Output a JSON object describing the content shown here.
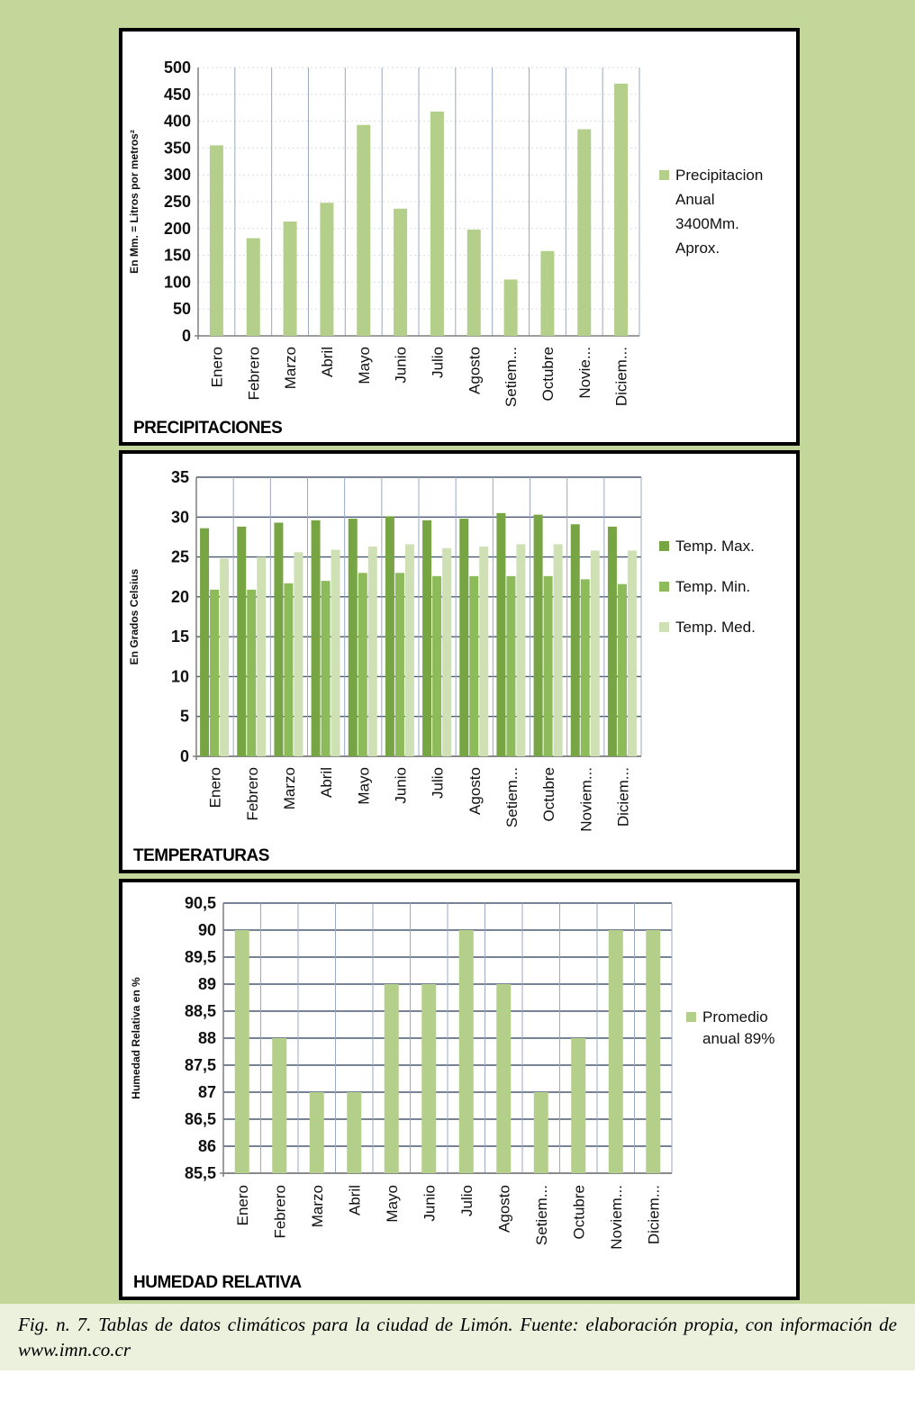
{
  "caption": "Fig. n. 7. Tablas de datos climáticos para la ciudad de Limón. Fuente: elaboración propia, con información de www.imn.co.cr",
  "colors": {
    "figure_background": "#c4d79b",
    "caption_background": "#ebf1dd",
    "bar_light": "#b4cf8a",
    "bar_dark": "#77a543",
    "bar_mid": "#8dbb5a",
    "bar_pale": "#cfe0b4",
    "gridline": "#4a5a70"
  },
  "chart_data": [
    {
      "type": "bar",
      "panel_title": "PRECIPITACIONES",
      "ylabel": "En Mm. = Litros por metros²",
      "categories": [
        "Enero",
        "Febrero",
        "Marzo",
        "Abril",
        "Mayo",
        "Junio",
        "Julio",
        "Agosto",
        "Setiem...",
        "Octubre",
        "Novie...",
        "Diciem..."
      ],
      "ylim": [
        0,
        500
      ],
      "yticks": [
        "0",
        "50",
        "100",
        "150",
        "200",
        "250",
        "300",
        "350",
        "400",
        "450",
        "500"
      ],
      "grid": "vertical",
      "legend_position": "right",
      "series": [
        {
          "name": "Precipitacion Anual 3400Mm. Aprox.",
          "legend_lines": [
            "Precipitacion",
            "Anual",
            "3400Mm.",
            "Aprox."
          ],
          "values": [
            355,
            182,
            213,
            248,
            393,
            237,
            418,
            198,
            105,
            158,
            385,
            470
          ]
        }
      ]
    },
    {
      "type": "bar",
      "panel_title": "TEMPERATURAS",
      "ylabel": "En Grados Celsius",
      "categories": [
        "Enero",
        "Febrero",
        "Marzo",
        "Abril",
        "Mayo",
        "Junio",
        "Julio",
        "Agosto",
        "Setiem...",
        "Octubre",
        "Noviem...",
        "Diciem..."
      ],
      "ylim": [
        0,
        35
      ],
      "yticks": [
        "0",
        "5",
        "10",
        "15",
        "20",
        "25",
        "30",
        "35"
      ],
      "grid": "both",
      "legend_position": "right",
      "series": [
        {
          "name": "Temp. Max.",
          "values": [
            28.6,
            28.8,
            29.3,
            29.6,
            29.8,
            30.1,
            29.6,
            29.8,
            30.5,
            30.3,
            29.1,
            28.8
          ]
        },
        {
          "name": "Temp. Min.",
          "values": [
            20.9,
            20.9,
            21.7,
            22.0,
            23.0,
            23.0,
            22.6,
            22.6,
            22.6,
            22.6,
            22.2,
            21.6
          ]
        },
        {
          "name": "Temp. Med.",
          "values": [
            24.8,
            25.0,
            25.6,
            25.9,
            26.3,
            26.6,
            26.1,
            26.3,
            26.6,
            26.6,
            25.8,
            25.8
          ]
        }
      ]
    },
    {
      "type": "bar",
      "panel_title": "HUMEDAD RELATIVA",
      "ylabel": "Humedad Relativa en %",
      "categories": [
        "Enero",
        "Febrero",
        "Marzo",
        "Abril",
        "Mayo",
        "Junio",
        "Julio",
        "Agosto",
        "Setiem...",
        "Octubre",
        "Noviem...",
        "Diciem..."
      ],
      "ylim": [
        85.5,
        90.5
      ],
      "yticks": [
        "85,5",
        "86",
        "86,5",
        "87",
        "87,5",
        "88",
        "88,5",
        "89",
        "89,5",
        "90",
        "90,5"
      ],
      "grid": "both",
      "legend_position": "right",
      "series": [
        {
          "name": "Promedio anual 89%",
          "legend_lines": [
            "Promedio",
            "anual  89%"
          ],
          "values": [
            90,
            88,
            87,
            87,
            89,
            89,
            90,
            89,
            87,
            88,
            90,
            90
          ]
        }
      ]
    }
  ]
}
